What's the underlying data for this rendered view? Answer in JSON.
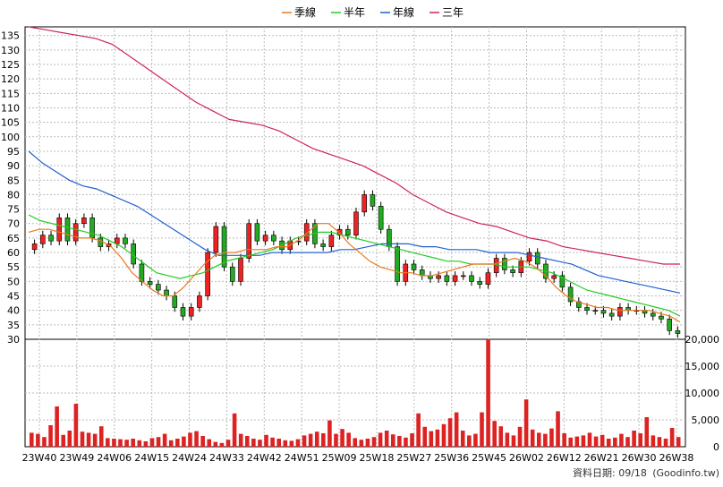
{
  "chart_data": {
    "type": "candlestick",
    "legend": [
      {
        "name": "季線",
        "color": "#e87a1e"
      },
      {
        "name": "半年",
        "color": "#22cc22"
      },
      {
        "name": "年線",
        "color": "#2060d0"
      },
      {
        "name": "三年",
        "color": "#cc2266"
      }
    ],
    "price_axis": {
      "ylim": [
        30,
        138
      ],
      "ticks": [
        30,
        35,
        40,
        45,
        50,
        55,
        60,
        65,
        70,
        75,
        80,
        85,
        90,
        95,
        100,
        105,
        110,
        115,
        120,
        125,
        130,
        135
      ]
    },
    "volume_axis": {
      "ylim": [
        0,
        20000
      ],
      "ticks": [
        0,
        5000,
        10000,
        15000,
        20000
      ],
      "tick_labels": [
        "0",
        "5,000",
        "10,000",
        "15,000",
        "20,000"
      ]
    },
    "x_ticks": [
      "23W40",
      "23W49",
      "24W06",
      "24W15",
      "24W24",
      "24W33",
      "24W42",
      "24W51",
      "25W09",
      "25W18",
      "25W27",
      "25W36",
      "25W45",
      "26W02",
      "26W12",
      "26W21",
      "26W30",
      "26W38"
    ],
    "weekly_close": [
      63,
      66,
      64,
      72,
      64,
      70,
      72,
      65,
      62,
      63,
      65,
      63,
      56,
      50,
      49,
      47,
      45,
      41,
      38,
      41,
      45,
      60,
      69,
      55,
      50,
      58,
      70,
      64,
      66,
      64,
      61,
      64,
      64,
      70,
      63,
      62,
      66,
      68,
      66,
      74,
      80,
      76,
      68,
      62,
      50,
      56,
      54,
      52,
      51,
      52,
      50,
      52,
      52,
      50,
      49,
      53,
      58,
      54,
      53,
      57,
      60,
      56,
      51,
      52,
      48,
      43,
      41,
      40,
      40,
      39,
      38,
      41,
      40,
      40,
      39,
      38,
      37,
      33,
      32
    ],
    "ma_quarter": [
      67,
      68,
      68,
      67,
      66,
      65,
      65,
      64,
      62,
      58,
      53,
      50,
      47,
      45,
      45,
      48,
      52,
      56,
      59,
      60,
      60,
      61,
      61,
      61,
      62,
      62,
      64,
      67,
      70,
      70,
      67,
      63,
      60,
      57,
      55,
      54,
      53,
      53,
      52,
      52,
      53,
      54,
      55,
      56,
      56,
      56,
      57,
      58,
      57,
      55,
      52,
      48,
      45,
      43,
      42,
      41,
      41,
      40,
      40,
      40,
      40,
      39,
      38,
      36
    ],
    "ma_half": [
      73,
      71,
      70,
      69,
      68,
      67,
      66,
      64,
      62,
      59,
      56,
      53,
      52,
      51,
      52,
      53,
      55,
      57,
      58,
      59,
      60,
      61,
      63,
      65,
      66,
      67,
      67,
      66,
      65,
      64,
      63,
      62,
      61,
      60,
      59,
      58,
      57,
      57,
      56,
      56,
      56,
      55,
      55,
      55,
      54,
      53,
      51,
      49,
      47,
      46,
      45,
      44,
      43,
      42,
      41,
      40,
      38
    ],
    "ma_year": [
      95,
      91,
      88,
      85,
      83,
      82,
      80,
      78,
      76,
      73,
      70,
      67,
      64,
      61,
      59,
      59,
      59,
      59,
      60,
      60,
      60,
      60,
      60,
      61,
      61,
      62,
      63,
      63,
      63,
      62,
      62,
      61,
      61,
      61,
      60,
      60,
      60,
      59,
      58,
      57,
      56,
      54,
      52,
      51,
      50,
      49,
      48,
      47,
      46
    ],
    "ma_3year": [
      138,
      137,
      136,
      135,
      134,
      132,
      128,
      124,
      120,
      116,
      112,
      109,
      106,
      105,
      104,
      102,
      99,
      96,
      94,
      92,
      90,
      87,
      84,
      80,
      77,
      74,
      72,
      70,
      69,
      67,
      65,
      64,
      62,
      61,
      60,
      59,
      58,
      57,
      56,
      56
    ],
    "volume": [
      2600,
      2400,
      1800,
      4000,
      7500,
      2200,
      3000,
      8000,
      2800,
      2600,
      2400,
      3800,
      1600,
      1500,
      1400,
      1300,
      1500,
      1200,
      1000,
      1600,
      1800,
      2400,
      1200,
      1500,
      1900,
      2600,
      2900,
      2000,
      1400,
      900,
      700,
      1300,
      6200,
      2400,
      2000,
      1500,
      1300,
      2200,
      1700,
      1500,
      1200,
      1100,
      1400,
      2100,
      2400,
      2800,
      2500,
      4900,
      2400,
      3300,
      2600,
      1600,
      1300,
      1500,
      1800,
      2600,
      3000,
      2300,
      2000,
      1700,
      2500,
      6200,
      3700,
      2900,
      3200,
      4200,
      5300,
      6400,
      3000,
      2100,
      2400,
      6400,
      20000,
      4800,
      3800,
      2600,
      2100,
      3700,
      8800,
      3200,
      2600,
      2400,
      3400,
      6600,
      2500,
      1700,
      1900,
      2100,
      2600,
      1900,
      2200,
      1500,
      1700,
      2400,
      1800,
      3000,
      2500,
      5500,
      2100,
      1800,
      1500,
      3500,
      1800
    ]
  },
  "footer": {
    "date_label": "資料日期: 09/18",
    "source": "(Goodinfo.tw)"
  },
  "colors": {
    "up": "#ee2222",
    "down": "#22aa22",
    "volume": "#dd2222",
    "grid": "#bbbbbb",
    "axis": "#000000"
  }
}
